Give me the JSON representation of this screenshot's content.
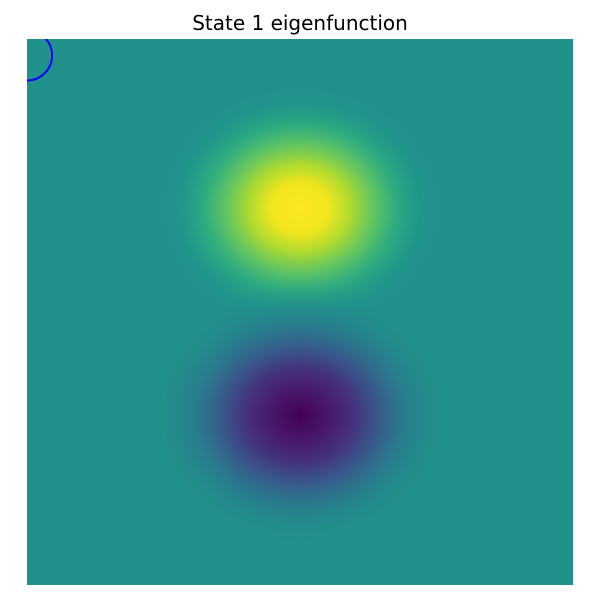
{
  "chart_data": {
    "type": "heatmap",
    "title": "State 1 eigenfunction",
    "xlabel": "",
    "ylabel": "",
    "axes_visible": false,
    "grid": false,
    "colormap": "viridis",
    "background_value": 0.5,
    "lobes": [
      {
        "name": "positive-lobe",
        "value": 1.0,
        "cx": 0.5,
        "cy": 0.31
      },
      {
        "name": "negative-lobe",
        "value": 0.0,
        "cx": 0.5,
        "cy": 0.69
      }
    ],
    "overlay": {
      "shape": "arc",
      "color": "#0000ff",
      "cx": 0.0,
      "cy": 0.03,
      "r": 0.046
    },
    "colors": {
      "viridis_low": "#440154",
      "viridis_mid": "#21918c",
      "viridis_high": "#fde725"
    }
  }
}
